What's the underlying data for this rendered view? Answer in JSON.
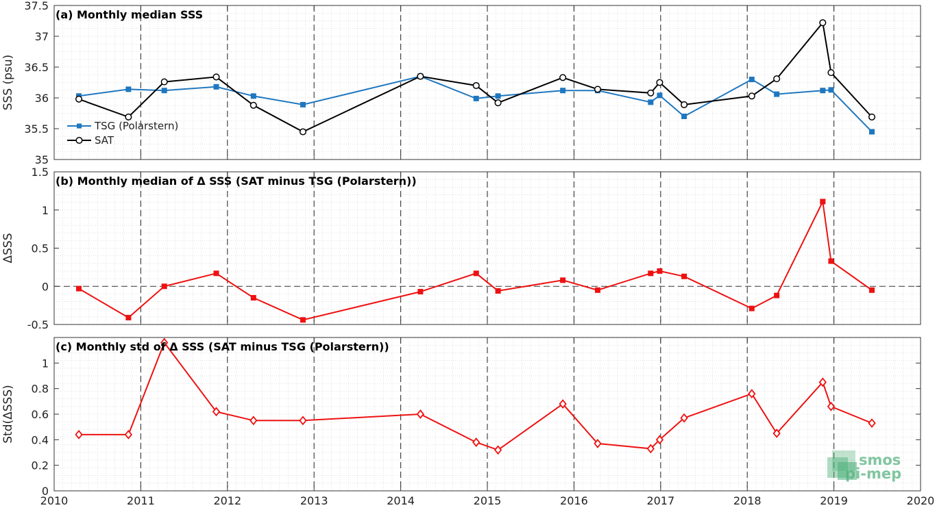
{
  "chart_data": [
    {
      "type": "line",
      "title": "(a) Monthly median SSS",
      "xlabel": "",
      "ylabel": "SSS (psu)",
      "xlim": [
        "2010-01-01",
        "2020-01-01"
      ],
      "ylim": [
        35,
        37.5
      ],
      "yticks": [
        "35",
        "35.5",
        "36",
        "36.5",
        "37",
        "37.5"
      ],
      "grid": true,
      "legend_position": "lower-left",
      "series": [
        {
          "name": "TSG (Polarstern)",
          "color": "#1f77bf",
          "marker": "square",
          "x": [
            "2010-04-15",
            "2010-11-10",
            "2011-04-10",
            "2011-11-15",
            "2012-04-20",
            "2012-11-15",
            "2014-03-25",
            "2014-11-15",
            "2015-02-15",
            "2015-11-15",
            "2016-04-10",
            "2016-11-20",
            "2016-12-28",
            "2017-04-10",
            "2018-01-20",
            "2018-05-05",
            "2018-11-15",
            "2018-12-20",
            "2019-06-10"
          ],
          "values": [
            36.03,
            36.14,
            36.12,
            36.18,
            36.03,
            35.89,
            36.35,
            35.99,
            36.03,
            36.12,
            36.12,
            35.93,
            36.04,
            35.7,
            36.3,
            36.06,
            36.12,
            36.13,
            35.45
          ]
        },
        {
          "name": "SAT",
          "color": "#000000",
          "marker": "circle",
          "x": [
            "2010-04-15",
            "2010-11-10",
            "2011-04-10",
            "2011-11-15",
            "2012-04-20",
            "2012-11-15",
            "2014-03-25",
            "2014-11-15",
            "2015-02-15",
            "2015-11-15",
            "2016-04-10",
            "2016-11-20",
            "2016-12-28",
            "2017-04-10",
            "2018-01-20",
            "2018-05-05",
            "2018-11-15",
            "2018-12-20",
            "2019-06-10"
          ],
          "values": [
            35.98,
            35.69,
            36.26,
            36.34,
            35.88,
            35.45,
            36.35,
            36.2,
            35.92,
            36.33,
            36.14,
            36.08,
            36.25,
            35.89,
            36.03,
            36.31,
            37.22,
            36.41,
            35.69
          ]
        }
      ]
    },
    {
      "type": "line",
      "title": "(b) Monthly median of Δ SSS (SAT minus TSG (Polarstern))",
      "xlabel": "",
      "ylabel": "ΔSSS",
      "xlim": [
        "2010-01-01",
        "2020-01-01"
      ],
      "ylim": [
        -0.5,
        1.5
      ],
      "yticks": [
        "-0.5",
        "0",
        "0.5",
        "1",
        "1.5"
      ],
      "grid": true,
      "zero_line": true,
      "series": [
        {
          "color": "#ee1111",
          "marker": "square",
          "x": [
            "2010-04-15",
            "2010-11-10",
            "2011-04-10",
            "2011-11-15",
            "2012-04-20",
            "2012-11-15",
            "2014-03-25",
            "2014-11-15",
            "2015-02-15",
            "2015-11-15",
            "2016-04-10",
            "2016-11-20",
            "2016-12-28",
            "2017-04-10",
            "2018-01-20",
            "2018-05-05",
            "2018-11-15",
            "2018-12-20",
            "2019-06-10"
          ],
          "values": [
            -0.03,
            -0.41,
            0.0,
            0.17,
            -0.15,
            -0.44,
            -0.07,
            0.17,
            -0.06,
            0.08,
            -0.05,
            0.17,
            0.2,
            0.13,
            -0.29,
            -0.12,
            1.11,
            0.33,
            -0.05
          ]
        }
      ]
    },
    {
      "type": "line",
      "title": "(c) Monthly std of Δ SSS (SAT minus TSG (Polarstern))",
      "xlabel": "",
      "ylabel": "Std(ΔSSS)",
      "xlim": [
        "2010-01-01",
        "2020-01-01"
      ],
      "ylim": [
        0,
        1.2
      ],
      "yticks": [
        "0",
        "0.2",
        "0.4",
        "0.6",
        "0.8",
        "1"
      ],
      "xticks": [
        "2010",
        "2011",
        "2012",
        "2013",
        "2014",
        "2015",
        "2016",
        "2017",
        "2018",
        "2019",
        "2020"
      ],
      "grid": true,
      "series": [
        {
          "color": "#ee1111",
          "marker": "diamond",
          "x": [
            "2010-04-15",
            "2010-11-10",
            "2011-04-10",
            "2011-11-15",
            "2012-04-20",
            "2012-11-15",
            "2014-03-25",
            "2014-11-15",
            "2015-02-15",
            "2015-11-15",
            "2016-04-10",
            "2016-11-20",
            "2016-12-28",
            "2017-04-10",
            "2018-01-20",
            "2018-05-05",
            "2018-11-15",
            "2018-12-20",
            "2019-06-10"
          ],
          "values": [
            0.44,
            0.44,
            1.16,
            0.62,
            0.55,
            0.55,
            0.6,
            0.38,
            0.32,
            0.68,
            0.37,
            0.33,
            0.4,
            0.57,
            0.76,
            0.45,
            0.85,
            0.66,
            0.53
          ]
        }
      ]
    }
  ],
  "logo": {
    "line1": "smos",
    "line2": "pi-mep",
    "color": "#4caf78"
  }
}
